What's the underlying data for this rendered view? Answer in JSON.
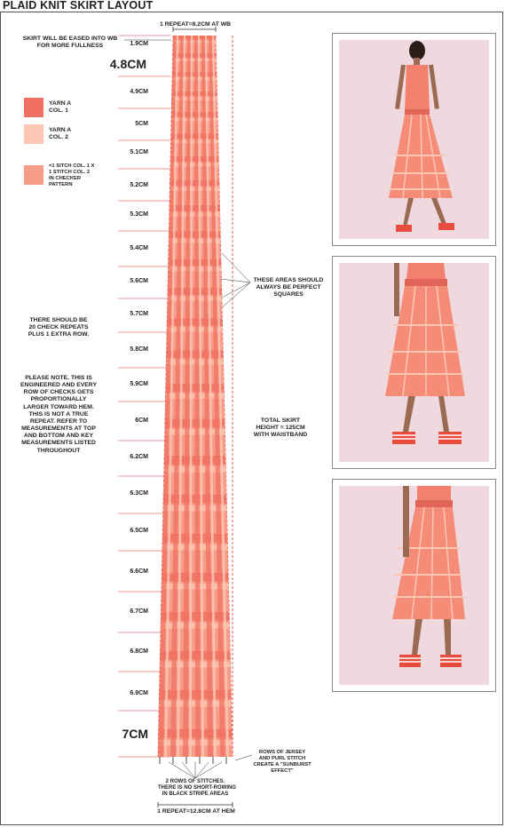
{
  "title": "PLAID KNIT SKIRT LAYOUT",
  "top_repeat": "1 REPEAT=8.2CM AT WB",
  "bottom_repeat": "1 REPEAT=12.8CM AT HEM",
  "ease_note": [
    "SKIRT WILL BE EASED INTO WB",
    "FOR MORE FULLNESS"
  ],
  "top_measure": "4.8CM",
  "bottom_measure": "7CM",
  "measurements": [
    "1.9CM",
    "4.9CM",
    "5CM",
    "5.1CM",
    "5.2CM",
    "5.3CM",
    "5.4CM",
    "5.6CM",
    "5.7CM",
    "5.8CM",
    "5.9CM",
    "6CM",
    "6.2CM",
    "6.3CM",
    "6.5CM",
    "6.6CM",
    "6.7CM",
    "6.8CM",
    "6.9CM"
  ],
  "legend": {
    "yarn_a_col1": [
      "YARN A",
      "COL. 1"
    ],
    "yarn_a_col2": [
      "YARN A",
      "COL. 2"
    ],
    "checker": [
      "=1 SITCH COL. 1 X",
      "1 STITCH COL. 2",
      "IN CHECKER",
      "PATTERN"
    ]
  },
  "repeats_note": [
    "THERE SHOULD BE",
    "20 CHECK REPEATS",
    "PLUS 1 EXTRA ROW."
  ],
  "engineering_note": [
    "PLEASE NOTE. THIS IS",
    "ENGINEERED AND EVERY",
    "ROW OF CHECKS GETS",
    "PROPORTIONALLY",
    "LARGER TOWARD HEM.",
    "THIS IS NOT A TRUE",
    "REPEAT. REFER TO",
    "MEASUREMENTS AT TOP",
    "AND BOTTOM AND KEY",
    "MEASUREMENTS LISTED",
    "THROUGHOUT"
  ],
  "squares_note": [
    "THESE AREAS SHOULD",
    "ALWAYS BE PERFECT",
    "SQUARES"
  ],
  "height_note": [
    "TOTAL SKIRT",
    "HEIGHT = 125CM",
    "WITH WAISTBAND"
  ],
  "stitch_note": [
    "ROWS OF JERSEY",
    "AND PURL STITCH",
    "CREATE A \"SUNBURST",
    "EFFECT\""
  ],
  "stripe_note": [
    "2 ROWS OF STITCHES.",
    "THERE IS NO SHORT-ROWING",
    "IN BLACK STRIPE AREAS"
  ],
  "colors": {
    "col1": "#f07163",
    "col2": "#fbc7b3",
    "checker": "#f79c89",
    "photo_bg": "#efd9df",
    "guide_red": "#e0302a"
  },
  "photos": [
    "model-front-full",
    "model-skirt-side",
    "model-skirt-back"
  ]
}
